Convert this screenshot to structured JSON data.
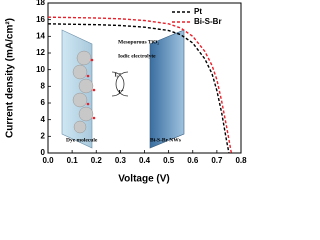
{
  "chart_data": {
    "type": "line",
    "xlabel": "Voltage (V)",
    "ylabel": "Current density (mA/cm²)",
    "x": [
      0,
      0.1,
      0.2,
      0.3,
      0.4,
      0.5,
      0.55,
      0.6,
      0.65,
      0.68,
      0.7,
      0.72,
      0.74,
      0.75,
      0.76
    ],
    "series": [
      {
        "name": "Pt",
        "color": "#000000",
        "values": [
          15.5,
          15.45,
          15.4,
          15.3,
          15.1,
          14.7,
          14.2,
          13.2,
          11.3,
          9.5,
          7.5,
          4.8,
          1.5,
          0,
          null
        ]
      },
      {
        "name": "Bi-S-Br",
        "color": "#e8202a",
        "values": [
          16.3,
          16.25,
          16.2,
          16.1,
          15.9,
          15.5,
          15.0,
          14.0,
          12.2,
          10.5,
          8.8,
          6.2,
          3.2,
          1.6,
          0
        ]
      }
    ],
    "xlim": [
      0,
      0.8
    ],
    "xticks": [
      {
        "value": 0,
        "label": "0.0"
      },
      {
        "value": 0.1,
        "label": "0.1"
      },
      {
        "value": 0.2,
        "label": "0.2"
      },
      {
        "value": 0.3,
        "label": "0.3"
      },
      {
        "value": 0.4,
        "label": "0.4"
      },
      {
        "value": 0.5,
        "label": "0.5"
      },
      {
        "value": 0.6,
        "label": "0.6"
      },
      {
        "value": 0.7,
        "label": "0.7"
      },
      {
        "value": 0.8,
        "label": "0.8"
      }
    ],
    "ylim": [
      0,
      18
    ],
    "yticks": [
      0,
      2,
      4,
      6,
      8,
      10,
      12,
      14,
      16,
      18
    ],
    "legend": "upper right",
    "annotations": [
      "Mesoporous TiO₂",
      "Iodic electrolyte",
      "I₃⁻",
      "I⁻",
      "Dye molecule",
      "Bi-S-Br NWs"
    ]
  }
}
